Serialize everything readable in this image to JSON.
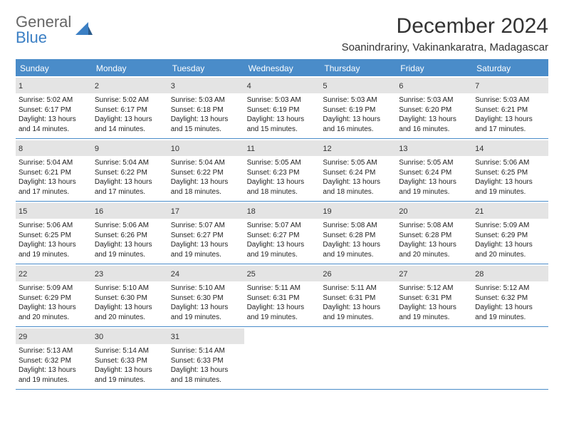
{
  "logo": {
    "line1": "General",
    "line2": "Blue"
  },
  "title": "December 2024",
  "location": "Soanindrariny, Vakinankaratra, Madagascar",
  "weekdays": [
    "Sunday",
    "Monday",
    "Tuesday",
    "Wednesday",
    "Thursday",
    "Friday",
    "Saturday"
  ],
  "colors": {
    "header_bar": "#4a8cc9",
    "day_header_bg": "#e4e4e4",
    "logo_gray": "#666666",
    "logo_blue": "#3b7fc4"
  },
  "weeks": [
    [
      {
        "num": "1",
        "sunrise": "Sunrise: 5:02 AM",
        "sunset": "Sunset: 6:17 PM",
        "daylight": "Daylight: 13 hours and 14 minutes."
      },
      {
        "num": "2",
        "sunrise": "Sunrise: 5:02 AM",
        "sunset": "Sunset: 6:17 PM",
        "daylight": "Daylight: 13 hours and 14 minutes."
      },
      {
        "num": "3",
        "sunrise": "Sunrise: 5:03 AM",
        "sunset": "Sunset: 6:18 PM",
        "daylight": "Daylight: 13 hours and 15 minutes."
      },
      {
        "num": "4",
        "sunrise": "Sunrise: 5:03 AM",
        "sunset": "Sunset: 6:19 PM",
        "daylight": "Daylight: 13 hours and 15 minutes."
      },
      {
        "num": "5",
        "sunrise": "Sunrise: 5:03 AM",
        "sunset": "Sunset: 6:19 PM",
        "daylight": "Daylight: 13 hours and 16 minutes."
      },
      {
        "num": "6",
        "sunrise": "Sunrise: 5:03 AM",
        "sunset": "Sunset: 6:20 PM",
        "daylight": "Daylight: 13 hours and 16 minutes."
      },
      {
        "num": "7",
        "sunrise": "Sunrise: 5:03 AM",
        "sunset": "Sunset: 6:21 PM",
        "daylight": "Daylight: 13 hours and 17 minutes."
      }
    ],
    [
      {
        "num": "8",
        "sunrise": "Sunrise: 5:04 AM",
        "sunset": "Sunset: 6:21 PM",
        "daylight": "Daylight: 13 hours and 17 minutes."
      },
      {
        "num": "9",
        "sunrise": "Sunrise: 5:04 AM",
        "sunset": "Sunset: 6:22 PM",
        "daylight": "Daylight: 13 hours and 17 minutes."
      },
      {
        "num": "10",
        "sunrise": "Sunrise: 5:04 AM",
        "sunset": "Sunset: 6:22 PM",
        "daylight": "Daylight: 13 hours and 18 minutes."
      },
      {
        "num": "11",
        "sunrise": "Sunrise: 5:05 AM",
        "sunset": "Sunset: 6:23 PM",
        "daylight": "Daylight: 13 hours and 18 minutes."
      },
      {
        "num": "12",
        "sunrise": "Sunrise: 5:05 AM",
        "sunset": "Sunset: 6:24 PM",
        "daylight": "Daylight: 13 hours and 18 minutes."
      },
      {
        "num": "13",
        "sunrise": "Sunrise: 5:05 AM",
        "sunset": "Sunset: 6:24 PM",
        "daylight": "Daylight: 13 hours and 19 minutes."
      },
      {
        "num": "14",
        "sunrise": "Sunrise: 5:06 AM",
        "sunset": "Sunset: 6:25 PM",
        "daylight": "Daylight: 13 hours and 19 minutes."
      }
    ],
    [
      {
        "num": "15",
        "sunrise": "Sunrise: 5:06 AM",
        "sunset": "Sunset: 6:25 PM",
        "daylight": "Daylight: 13 hours and 19 minutes."
      },
      {
        "num": "16",
        "sunrise": "Sunrise: 5:06 AM",
        "sunset": "Sunset: 6:26 PM",
        "daylight": "Daylight: 13 hours and 19 minutes."
      },
      {
        "num": "17",
        "sunrise": "Sunrise: 5:07 AM",
        "sunset": "Sunset: 6:27 PM",
        "daylight": "Daylight: 13 hours and 19 minutes."
      },
      {
        "num": "18",
        "sunrise": "Sunrise: 5:07 AM",
        "sunset": "Sunset: 6:27 PM",
        "daylight": "Daylight: 13 hours and 19 minutes."
      },
      {
        "num": "19",
        "sunrise": "Sunrise: 5:08 AM",
        "sunset": "Sunset: 6:28 PM",
        "daylight": "Daylight: 13 hours and 19 minutes."
      },
      {
        "num": "20",
        "sunrise": "Sunrise: 5:08 AM",
        "sunset": "Sunset: 6:28 PM",
        "daylight": "Daylight: 13 hours and 20 minutes."
      },
      {
        "num": "21",
        "sunrise": "Sunrise: 5:09 AM",
        "sunset": "Sunset: 6:29 PM",
        "daylight": "Daylight: 13 hours and 20 minutes."
      }
    ],
    [
      {
        "num": "22",
        "sunrise": "Sunrise: 5:09 AM",
        "sunset": "Sunset: 6:29 PM",
        "daylight": "Daylight: 13 hours and 20 minutes."
      },
      {
        "num": "23",
        "sunrise": "Sunrise: 5:10 AM",
        "sunset": "Sunset: 6:30 PM",
        "daylight": "Daylight: 13 hours and 20 minutes."
      },
      {
        "num": "24",
        "sunrise": "Sunrise: 5:10 AM",
        "sunset": "Sunset: 6:30 PM",
        "daylight": "Daylight: 13 hours and 19 minutes."
      },
      {
        "num": "25",
        "sunrise": "Sunrise: 5:11 AM",
        "sunset": "Sunset: 6:31 PM",
        "daylight": "Daylight: 13 hours and 19 minutes."
      },
      {
        "num": "26",
        "sunrise": "Sunrise: 5:11 AM",
        "sunset": "Sunset: 6:31 PM",
        "daylight": "Daylight: 13 hours and 19 minutes."
      },
      {
        "num": "27",
        "sunrise": "Sunrise: 5:12 AM",
        "sunset": "Sunset: 6:31 PM",
        "daylight": "Daylight: 13 hours and 19 minutes."
      },
      {
        "num": "28",
        "sunrise": "Sunrise: 5:12 AM",
        "sunset": "Sunset: 6:32 PM",
        "daylight": "Daylight: 13 hours and 19 minutes."
      }
    ],
    [
      {
        "num": "29",
        "sunrise": "Sunrise: 5:13 AM",
        "sunset": "Sunset: 6:32 PM",
        "daylight": "Daylight: 13 hours and 19 minutes."
      },
      {
        "num": "30",
        "sunrise": "Sunrise: 5:14 AM",
        "sunset": "Sunset: 6:33 PM",
        "daylight": "Daylight: 13 hours and 19 minutes."
      },
      {
        "num": "31",
        "sunrise": "Sunrise: 5:14 AM",
        "sunset": "Sunset: 6:33 PM",
        "daylight": "Daylight: 13 hours and 18 minutes."
      },
      null,
      null,
      null,
      null
    ]
  ]
}
